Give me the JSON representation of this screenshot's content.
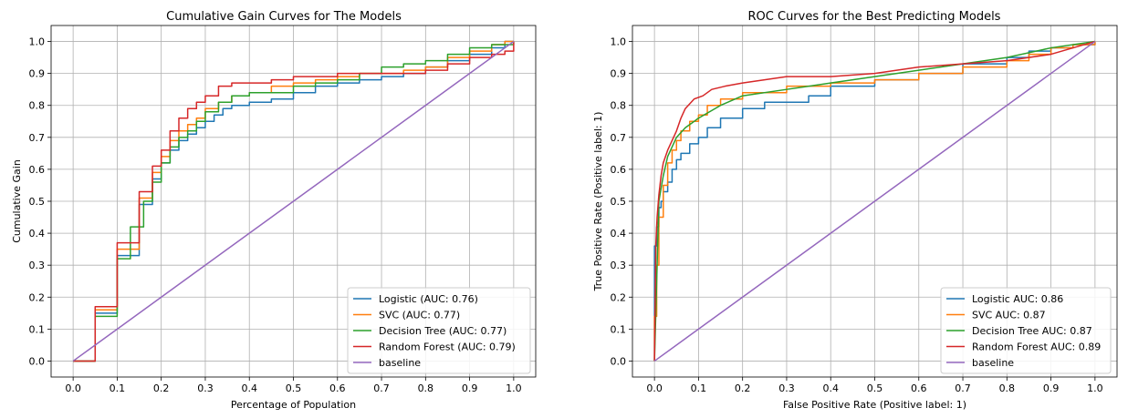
{
  "chart_data": [
    {
      "type": "line",
      "title": "Cumulative Gain Curves for The Models",
      "xlabel": "Percentage of Population",
      "ylabel": "Cumulative Gain",
      "xlim": [
        -0.05,
        1.05
      ],
      "ylim": [
        -0.05,
        1.05
      ],
      "xticks": [
        "0.0",
        "0.1",
        "0.2",
        "0.3",
        "0.4",
        "0.5",
        "0.6",
        "0.7",
        "0.8",
        "0.9",
        "1.0"
      ],
      "yticks": [
        "0.0",
        "0.1",
        "0.2",
        "0.3",
        "0.4",
        "0.5",
        "0.6",
        "0.7",
        "0.8",
        "0.9",
        "1.0"
      ],
      "grid": true,
      "legend_position": "lower-right",
      "series": [
        {
          "name": "Logistic (AUC: 0.76)",
          "color": "#1f77b4",
          "step": true,
          "x": [
            0.0,
            0.05,
            0.1,
            0.15,
            0.18,
            0.2,
            0.22,
            0.24,
            0.26,
            0.28,
            0.3,
            0.32,
            0.34,
            0.36,
            0.4,
            0.45,
            0.5,
            0.55,
            0.6,
            0.65,
            0.7,
            0.75,
            0.8,
            0.85,
            0.9,
            0.95,
            0.98,
            1.0
          ],
          "y": [
            0.0,
            0.15,
            0.33,
            0.49,
            0.57,
            0.62,
            0.66,
            0.69,
            0.71,
            0.73,
            0.75,
            0.77,
            0.79,
            0.8,
            0.81,
            0.82,
            0.84,
            0.86,
            0.87,
            0.88,
            0.89,
            0.9,
            0.92,
            0.94,
            0.96,
            0.98,
            1.0,
            1.0
          ]
        },
        {
          "name": "SVC (AUC: 0.77)",
          "color": "#ff7f0e",
          "step": true,
          "x": [
            0.0,
            0.05,
            0.1,
            0.15,
            0.18,
            0.2,
            0.22,
            0.24,
            0.26,
            0.28,
            0.3,
            0.33,
            0.36,
            0.4,
            0.45,
            0.5,
            0.55,
            0.6,
            0.65,
            0.7,
            0.75,
            0.8,
            0.85,
            0.9,
            0.95,
            0.98,
            1.0
          ],
          "y": [
            0.0,
            0.16,
            0.35,
            0.51,
            0.59,
            0.64,
            0.69,
            0.72,
            0.74,
            0.76,
            0.79,
            0.81,
            0.83,
            0.84,
            0.86,
            0.87,
            0.88,
            0.89,
            0.9,
            0.9,
            0.91,
            0.92,
            0.95,
            0.97,
            0.99,
            1.0,
            1.0
          ]
        },
        {
          "name": "Decision Tree (AUC: 0.77)",
          "color": "#2ca02c",
          "step": true,
          "x": [
            0.0,
            0.05,
            0.1,
            0.13,
            0.16,
            0.18,
            0.2,
            0.22,
            0.24,
            0.26,
            0.28,
            0.3,
            0.33,
            0.36,
            0.4,
            0.45,
            0.5,
            0.55,
            0.6,
            0.65,
            0.7,
            0.75,
            0.8,
            0.85,
            0.9,
            0.95,
            1.0
          ],
          "y": [
            0.0,
            0.14,
            0.32,
            0.42,
            0.5,
            0.56,
            0.62,
            0.67,
            0.7,
            0.72,
            0.75,
            0.78,
            0.81,
            0.83,
            0.84,
            0.84,
            0.86,
            0.87,
            0.88,
            0.9,
            0.92,
            0.93,
            0.94,
            0.96,
            0.98,
            0.99,
            1.0
          ]
        },
        {
          "name": "Random Forest (AUC: 0.79)",
          "color": "#d62728",
          "step": true,
          "x": [
            0.0,
            0.05,
            0.1,
            0.15,
            0.18,
            0.2,
            0.22,
            0.24,
            0.26,
            0.28,
            0.3,
            0.33,
            0.36,
            0.4,
            0.45,
            0.5,
            0.55,
            0.6,
            0.7,
            0.8,
            0.85,
            0.9,
            0.95,
            0.98,
            1.0
          ],
          "y": [
            0.0,
            0.17,
            0.37,
            0.53,
            0.61,
            0.66,
            0.72,
            0.76,
            0.79,
            0.81,
            0.83,
            0.86,
            0.87,
            0.87,
            0.88,
            0.89,
            0.89,
            0.9,
            0.9,
            0.91,
            0.93,
            0.95,
            0.96,
            0.97,
            1.0
          ]
        },
        {
          "name": "baseline",
          "color": "#9467bd",
          "step": false,
          "x": [
            0.0,
            1.0
          ],
          "y": [
            0.0,
            1.0
          ]
        }
      ]
    },
    {
      "type": "line",
      "title": "ROC Curves for the Best Predicting Models",
      "xlabel": "False Positive Rate (Positive label: 1)",
      "ylabel": "True Positive Rate (Positive label: 1)",
      "xlim": [
        -0.05,
        1.05
      ],
      "ylim": [
        -0.05,
        1.05
      ],
      "xticks": [
        "0.0",
        "0.1",
        "0.2",
        "0.3",
        "0.4",
        "0.5",
        "0.6",
        "0.7",
        "0.8",
        "0.9",
        "1.0"
      ],
      "yticks": [
        "0.0",
        "0.1",
        "0.2",
        "0.3",
        "0.4",
        "0.5",
        "0.6",
        "0.7",
        "0.8",
        "0.9",
        "1.0"
      ],
      "grid": true,
      "legend_position": "lower-right",
      "series": [
        {
          "name": "Logistic AUC: 0.86",
          "color": "#1f77b4",
          "step": true,
          "x": [
            0.0,
            0.0,
            0.005,
            0.01,
            0.015,
            0.02,
            0.03,
            0.04,
            0.05,
            0.06,
            0.08,
            0.1,
            0.12,
            0.15,
            0.2,
            0.25,
            0.3,
            0.35,
            0.4,
            0.5,
            0.6,
            0.7,
            0.8,
            0.85,
            0.9,
            0.95,
            1.0
          ],
          "y": [
            0.0,
            0.36,
            0.42,
            0.48,
            0.5,
            0.53,
            0.56,
            0.6,
            0.63,
            0.65,
            0.68,
            0.7,
            0.73,
            0.76,
            0.79,
            0.81,
            0.81,
            0.83,
            0.86,
            0.88,
            0.9,
            0.93,
            0.95,
            0.97,
            0.98,
            0.99,
            1.0
          ]
        },
        {
          "name": "SVC AUC: 0.87",
          "color": "#ff7f0e",
          "step": true,
          "x": [
            0.0,
            0.0,
            0.005,
            0.01,
            0.02,
            0.03,
            0.04,
            0.05,
            0.06,
            0.08,
            0.1,
            0.12,
            0.15,
            0.2,
            0.3,
            0.4,
            0.5,
            0.6,
            0.7,
            0.8,
            0.85,
            0.9,
            0.95,
            1.0
          ],
          "y": [
            0.0,
            0.14,
            0.3,
            0.45,
            0.55,
            0.62,
            0.66,
            0.69,
            0.72,
            0.75,
            0.77,
            0.8,
            0.82,
            0.84,
            0.86,
            0.87,
            0.88,
            0.9,
            0.92,
            0.94,
            0.96,
            0.98,
            0.99,
            1.0
          ]
        },
        {
          "name": "Decision Tree AUC: 0.87",
          "color": "#2ca02c",
          "step": false,
          "x": [
            0.0,
            0.01,
            0.02,
            0.03,
            0.05,
            0.07,
            0.1,
            0.15,
            0.2,
            0.3,
            0.4,
            0.5,
            0.6,
            0.7,
            0.8,
            0.9,
            1.0
          ],
          "y": [
            0.0,
            0.5,
            0.58,
            0.64,
            0.7,
            0.73,
            0.76,
            0.8,
            0.83,
            0.85,
            0.87,
            0.89,
            0.91,
            0.93,
            0.95,
            0.98,
            1.0
          ]
        },
        {
          "name": "Random Forest AUC: 0.89",
          "color": "#d62728",
          "step": false,
          "x": [
            0.0,
            0.003,
            0.006,
            0.01,
            0.015,
            0.02,
            0.03,
            0.04,
            0.05,
            0.06,
            0.07,
            0.09,
            0.11,
            0.13,
            0.16,
            0.2,
            0.25,
            0.3,
            0.4,
            0.5,
            0.6,
            0.7,
            0.8,
            0.9,
            0.95,
            1.0
          ],
          "y": [
            0.0,
            0.36,
            0.45,
            0.52,
            0.58,
            0.62,
            0.66,
            0.69,
            0.72,
            0.76,
            0.79,
            0.82,
            0.83,
            0.85,
            0.86,
            0.87,
            0.88,
            0.89,
            0.89,
            0.9,
            0.92,
            0.93,
            0.94,
            0.96,
            0.98,
            1.0
          ]
        },
        {
          "name": "baseline",
          "color": "#9467bd",
          "step": false,
          "x": [
            0.0,
            1.0
          ],
          "y": [
            0.0,
            1.0
          ]
        }
      ]
    }
  ]
}
